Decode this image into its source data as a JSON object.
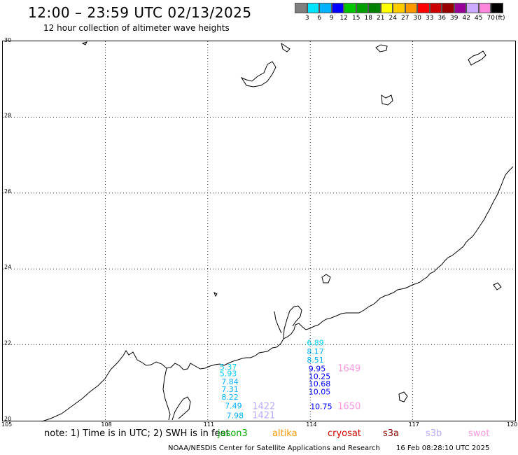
{
  "header": {
    "title": "12:00 – 23:59 UTC 02/13/2025",
    "subtitle": "12 hour collection of altimeter wave heights"
  },
  "legend": {
    "colors": [
      "#7f7f7f",
      "#00e5ff",
      "#00b2ff",
      "#0000ff",
      "#00c800",
      "#00a000",
      "#008000",
      "#ffff00",
      "#ffcc00",
      "#ff9900",
      "#ff0000",
      "#cc0000",
      "#990000",
      "#990099",
      "#ccaaff",
      "#ff88dd",
      "#000000"
    ],
    "labels": [
      "3",
      "6",
      "9",
      "12",
      "15",
      "18",
      "21",
      "24",
      "27",
      "30",
      "33",
      "36",
      "39",
      "42",
      "45",
      "70"
    ],
    "unit": "(ft)"
  },
  "axes": {
    "lat_labels": [
      "30",
      "28",
      "26",
      "24",
      "22",
      "20"
    ],
    "lon_labels": [
      "105",
      "108",
      "111",
      "114",
      "117",
      "120"
    ]
  },
  "note": "note: 1) Time is in UTC; 2) SWH is in feet",
  "missions": [
    {
      "label": "jason3",
      "color": "#00aa00"
    },
    {
      "label": "altika",
      "color": "#ff9900"
    },
    {
      "label": "cryosat",
      "color": "#cc0000"
    },
    {
      "label": "s3a",
      "color": "#880000"
    },
    {
      "label": "s3b",
      "color": "#bbaaff"
    },
    {
      "label": "swot",
      "color": "#ff99dd"
    }
  ],
  "footer": {
    "credit": "NOAA/NESDIS Center for Satellite Applications and Research",
    "timestamp": "16 Feb 08:28:10 UTC 2025"
  },
  "observations": {
    "track1": [
      {
        "lon": 111.35,
        "lat": 21.35,
        "value": "5.37",
        "color": "#00ccee"
      },
      {
        "lon": 111.35,
        "lat": 21.17,
        "value": "5.93",
        "color": "#00ccee"
      },
      {
        "lon": 111.4,
        "lat": 20.96,
        "value": "7.84",
        "color": "#00b2ff"
      },
      {
        "lon": 111.4,
        "lat": 20.76,
        "value": "7.31",
        "color": "#00b2ff"
      },
      {
        "lon": 111.4,
        "lat": 20.55,
        "value": "8.22",
        "color": "#00b2ff"
      },
      {
        "lon": 111.5,
        "lat": 20.32,
        "value": "7.49",
        "color": "#00b2ff"
      },
      {
        "lon": 111.55,
        "lat": 20.06,
        "value": "7.98",
        "color": "#00b2ff"
      }
    ],
    "track2": [
      {
        "lon": 113.9,
        "lat": 21.98,
        "value": "6.89",
        "color": "#00ccee"
      },
      {
        "lon": 113.9,
        "lat": 21.75,
        "value": "8.17",
        "color": "#00b2ff"
      },
      {
        "lon": 113.9,
        "lat": 21.53,
        "value": "8.51",
        "color": "#00b2ff"
      },
      {
        "lon": 113.95,
        "lat": 21.3,
        "value": "9.95",
        "color": "#0000ff"
      },
      {
        "lon": 113.95,
        "lat": 21.1,
        "value": "10.25",
        "color": "#0000ff"
      },
      {
        "lon": 113.95,
        "lat": 20.9,
        "value": "10.68",
        "color": "#0000ff"
      },
      {
        "lon": 113.95,
        "lat": 20.69,
        "value": "10.05",
        "color": "#0000ff"
      },
      {
        "lon": 114.0,
        "lat": 20.3,
        "value": "10.75",
        "color": "#0000ff"
      }
    ],
    "swot": [
      {
        "lon": 114.8,
        "lat": 21.3,
        "value": "1649",
        "color": "#ff99dd"
      },
      {
        "lon": 114.8,
        "lat": 20.3,
        "value": "1650",
        "color": "#ff99dd"
      }
    ],
    "s3b": [
      {
        "lon": 112.3,
        "lat": 20.3,
        "value": "1422",
        "color": "#bbaaff"
      },
      {
        "lon": 112.3,
        "lat": 20.06,
        "value": "1421",
        "color": "#bbaaff"
      }
    ]
  }
}
